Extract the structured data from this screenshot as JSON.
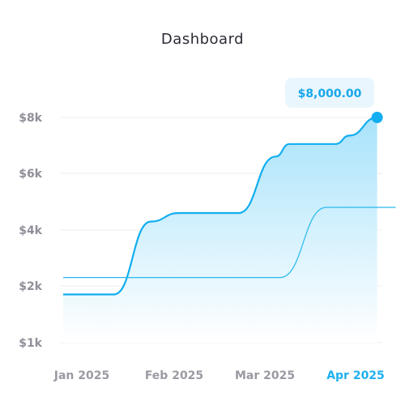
{
  "header": {
    "title": "Dashboard"
  },
  "tooltip": {
    "text": "$8,000.00"
  },
  "colors": {
    "primary_line": "#12aef0",
    "secondary_line": "#28b8ee",
    "area_top": "#a9e3fb",
    "area_bottom": "#ffffff",
    "tooltip_bg": "#e9f6fd",
    "grid": "#eeeeef",
    "active_tick": "#1fb1f0"
  },
  "chart_data": {
    "type": "area",
    "title": "Dashboard",
    "xlabel": "",
    "ylabel": "",
    "ylim": [
      1000,
      8000
    ],
    "yticks": [
      {
        "value": 8000,
        "label": "$8k"
      },
      {
        "value": 6000,
        "label": "$6k"
      },
      {
        "value": 4000,
        "label": "$4k"
      },
      {
        "value": 2000,
        "label": "$2k"
      },
      {
        "value": 1000,
        "label": "$1k"
      }
    ],
    "categories": [
      "Jan 2025",
      "Feb 2025",
      "Mar 2025",
      "Apr 2025"
    ],
    "active_category": "Apr 2025",
    "grid": true,
    "series": [
      {
        "kind": "area-line",
        "points": [
          {
            "x": 0,
            "y": 1850
          },
          {
            "x": 0.55,
            "y": 1850
          },
          {
            "x": 0.95,
            "y": 4300
          },
          {
            "x": 1.25,
            "y": 4600
          },
          {
            "x": 1.9,
            "y": 4600
          },
          {
            "x": 2.3,
            "y": 6600
          },
          {
            "x": 2.45,
            "y": 7050
          },
          {
            "x": 2.95,
            "y": 7050
          },
          {
            "x": 3.1,
            "y": 7350
          },
          {
            "x": 3.4,
            "y": 8000
          }
        ]
      },
      {
        "kind": "line",
        "points": [
          {
            "x": 0,
            "y": 2300
          },
          {
            "x": 2.35,
            "y": 2300
          },
          {
            "x": 2.85,
            "y": 4800
          },
          {
            "x": 3.6,
            "y": 4800
          }
        ]
      }
    ],
    "highlight": {
      "x": 3.4,
      "y": 8000,
      "label": "$8,000.00"
    }
  }
}
